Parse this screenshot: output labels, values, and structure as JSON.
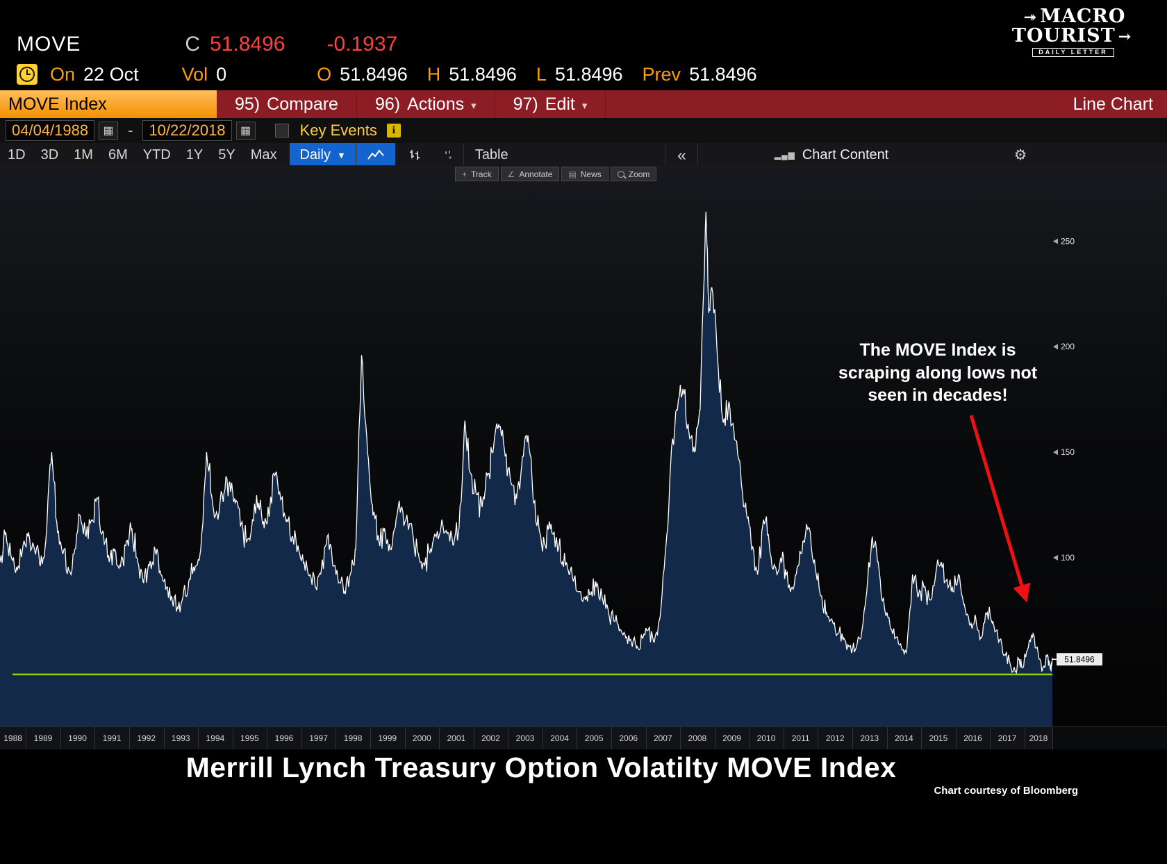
{
  "header": {
    "ticker": "MOVE",
    "close_label": "C",
    "close": "51.8496",
    "change": "-0.1937",
    "on_label": "On",
    "date": "22 Oct",
    "vol_label": "Vol",
    "vol": "0",
    "open_label": "O",
    "open": "51.8496",
    "high_label": "H",
    "high": "51.8496",
    "low_label": "L",
    "low": "51.8496",
    "prev_label": "Prev",
    "prev": "51.8496"
  },
  "logo": {
    "line1": "MACRO",
    "line2": "TOURIST",
    "sub": "DAILY LETTER"
  },
  "menubar": {
    "security": "MOVE Index",
    "items": [
      {
        "num": "95)",
        "label": "Compare"
      },
      {
        "num": "96)",
        "label": "Actions"
      },
      {
        "num": "97)",
        "label": "Edit"
      }
    ],
    "right": "Line Chart"
  },
  "rangebar": {
    "start_date": "04/04/1988",
    "separator": "-",
    "end_date": "10/22/2018",
    "key_events_label": "Key Events"
  },
  "toolbar": {
    "periods": [
      "1D",
      "3D",
      "1M",
      "6M",
      "YTD",
      "1Y",
      "5Y",
      "Max"
    ],
    "frequency": "Daily",
    "table_label": "Table",
    "chart_content_label": "Chart Content"
  },
  "mini_toolbar": {
    "items": [
      "Track",
      "Annotate",
      "News",
      "Zoom"
    ]
  },
  "annotation": {
    "text_lines": [
      "The MOVE Index is",
      "scraping along lows not",
      "seen in decades!"
    ]
  },
  "title": "Merrill Lynch Treasury Option Volatilty MOVE Index",
  "credit": "Chart courtesy of Bloomberg",
  "icons": {
    "caret": "▾",
    "freq_caret": "▼",
    "collapse": "«",
    "gear": "⚙",
    "calendar": "▦",
    "info": "i",
    "chart_bars": "▂▄▆",
    "track": "+",
    "annotate": "∠",
    "news": "▤",
    "logo_arrow": "↠",
    "logo_arrow_head": "→"
  },
  "chart_data": {
    "type": "line",
    "title": "MOVE Index daily, 04/04/1988 - 10/22/2018",
    "xlabel": "",
    "ylabel": "",
    "grid": false,
    "legend_position": "none",
    "xlim": [
      1988.25,
      2018.81
    ],
    "ylim": [
      20,
      286
    ],
    "y_ticks": [
      100,
      150,
      200,
      250
    ],
    "x_tick_years": [
      1988,
      1989,
      1990,
      1991,
      1992,
      1993,
      1994,
      1995,
      1996,
      1997,
      1998,
      1999,
      2000,
      2001,
      2002,
      2003,
      2004,
      2005,
      2006,
      2007,
      2008,
      2009,
      2010,
      2011,
      2012,
      2013,
      2014,
      2015,
      2016,
      2017,
      2018
    ],
    "low_line": 44.7,
    "last_value": 51.8496,
    "last_label": "51.8496",
    "line_color": "#ffffff",
    "fill_color": "#13294a",
    "low_line_color": "#8fd400",
    "arrow_color": "#ee1111",
    "points": [
      [
        1988.25,
        98
      ],
      [
        1988.42,
        112
      ],
      [
        1988.58,
        100
      ],
      [
        1988.75,
        94
      ],
      [
        1988.92,
        106
      ],
      [
        1989.08,
        112
      ],
      [
        1989.25,
        104
      ],
      [
        1989.42,
        96
      ],
      [
        1989.58,
        108
      ],
      [
        1989.75,
        150
      ],
      [
        1989.92,
        112
      ],
      [
        1990.08,
        102
      ],
      [
        1990.25,
        94
      ],
      [
        1990.42,
        104
      ],
      [
        1990.58,
        120
      ],
      [
        1990.75,
        110
      ],
      [
        1990.92,
        118
      ],
      [
        1991.08,
        128
      ],
      [
        1991.25,
        112
      ],
      [
        1991.42,
        98
      ],
      [
        1991.58,
        104
      ],
      [
        1991.75,
        96
      ],
      [
        1991.92,
        108
      ],
      [
        1992.08,
        114
      ],
      [
        1992.25,
        98
      ],
      [
        1992.42,
        88
      ],
      [
        1992.58,
        96
      ],
      [
        1992.75,
        104
      ],
      [
        1992.92,
        92
      ],
      [
        1993.08,
        86
      ],
      [
        1993.25,
        80
      ],
      [
        1993.42,
        76
      ],
      [
        1993.58,
        84
      ],
      [
        1993.75,
        90
      ],
      [
        1993.92,
        96
      ],
      [
        1994.08,
        104
      ],
      [
        1994.25,
        150
      ],
      [
        1994.42,
        126
      ],
      [
        1994.58,
        118
      ],
      [
        1994.75,
        130
      ],
      [
        1994.92,
        136
      ],
      [
        1995.08,
        126
      ],
      [
        1995.25,
        116
      ],
      [
        1995.42,
        108
      ],
      [
        1995.58,
        118
      ],
      [
        1995.75,
        126
      ],
      [
        1995.92,
        114
      ],
      [
        1996.08,
        122
      ],
      [
        1996.25,
        140
      ],
      [
        1996.42,
        128
      ],
      [
        1996.58,
        118
      ],
      [
        1996.75,
        110
      ],
      [
        1996.92,
        104
      ],
      [
        1997.08,
        98
      ],
      [
        1997.25,
        92
      ],
      [
        1997.42,
        86
      ],
      [
        1997.58,
        94
      ],
      [
        1997.75,
        110
      ],
      [
        1997.92,
        96
      ],
      [
        1998.08,
        88
      ],
      [
        1998.25,
        84
      ],
      [
        1998.42,
        92
      ],
      [
        1998.58,
        104
      ],
      [
        1998.75,
        196
      ],
      [
        1998.92,
        150
      ],
      [
        1999.08,
        120
      ],
      [
        1999.25,
        108
      ],
      [
        1999.42,
        114
      ],
      [
        1999.58,
        104
      ],
      [
        1999.75,
        118
      ],
      [
        1999.92,
        124
      ],
      [
        2000.08,
        118
      ],
      [
        2000.25,
        110
      ],
      [
        2000.42,
        100
      ],
      [
        2000.58,
        96
      ],
      [
        2000.75,
        104
      ],
      [
        2000.92,
        110
      ],
      [
        2001.08,
        118
      ],
      [
        2001.25,
        112
      ],
      [
        2001.42,
        106
      ],
      [
        2001.58,
        114
      ],
      [
        2001.75,
        165
      ],
      [
        2001.92,
        140
      ],
      [
        2002.08,
        130
      ],
      [
        2002.25,
        124
      ],
      [
        2002.42,
        140
      ],
      [
        2002.58,
        152
      ],
      [
        2002.75,
        162
      ],
      [
        2002.92,
        148
      ],
      [
        2003.08,
        136
      ],
      [
        2003.25,
        128
      ],
      [
        2003.42,
        148
      ],
      [
        2003.58,
        158
      ],
      [
        2003.75,
        126
      ],
      [
        2003.92,
        112
      ],
      [
        2004.08,
        106
      ],
      [
        2004.25,
        116
      ],
      [
        2004.42,
        108
      ],
      [
        2004.58,
        98
      ],
      [
        2004.75,
        94
      ],
      [
        2004.92,
        90
      ],
      [
        2005.08,
        84
      ],
      [
        2005.25,
        80
      ],
      [
        2005.42,
        84
      ],
      [
        2005.58,
        88
      ],
      [
        2005.75,
        80
      ],
      [
        2005.92,
        74
      ],
      [
        2006.08,
        70
      ],
      [
        2006.25,
        66
      ],
      [
        2006.42,
        62
      ],
      [
        2006.58,
        60
      ],
      [
        2006.75,
        58
      ],
      [
        2006.92,
        62
      ],
      [
        2007.08,
        66
      ],
      [
        2007.25,
        60
      ],
      [
        2007.42,
        72
      ],
      [
        2007.58,
        104
      ],
      [
        2007.75,
        152
      ],
      [
        2007.92,
        170
      ],
      [
        2008.08,
        180
      ],
      [
        2008.25,
        160
      ],
      [
        2008.42,
        150
      ],
      [
        2008.58,
        170
      ],
      [
        2008.75,
        264
      ],
      [
        2008.83,
        216
      ],
      [
        2008.92,
        228
      ],
      [
        2009.08,
        196
      ],
      [
        2009.25,
        164
      ],
      [
        2009.42,
        174
      ],
      [
        2009.58,
        156
      ],
      [
        2009.75,
        142
      ],
      [
        2009.92,
        122
      ],
      [
        2010.08,
        104
      ],
      [
        2010.25,
        92
      ],
      [
        2010.42,
        118
      ],
      [
        2010.58,
        108
      ],
      [
        2010.75,
        96
      ],
      [
        2010.92,
        100
      ],
      [
        2011.08,
        92
      ],
      [
        2011.25,
        86
      ],
      [
        2011.42,
        96
      ],
      [
        2011.58,
        108
      ],
      [
        2011.75,
        114
      ],
      [
        2011.92,
        96
      ],
      [
        2012.08,
        82
      ],
      [
        2012.25,
        74
      ],
      [
        2012.42,
        70
      ],
      [
        2012.58,
        64
      ],
      [
        2012.75,
        62
      ],
      [
        2012.92,
        58
      ],
      [
        2013.08,
        56
      ],
      [
        2013.25,
        62
      ],
      [
        2013.42,
        84
      ],
      [
        2013.58,
        110
      ],
      [
        2013.75,
        98
      ],
      [
        2013.92,
        78
      ],
      [
        2014.08,
        70
      ],
      [
        2014.25,
        62
      ],
      [
        2014.42,
        58
      ],
      [
        2014.58,
        56
      ],
      [
        2014.75,
        92
      ],
      [
        2014.92,
        82
      ],
      [
        2015.08,
        86
      ],
      [
        2015.25,
        80
      ],
      [
        2015.42,
        92
      ],
      [
        2015.58,
        98
      ],
      [
        2015.75,
        90
      ],
      [
        2015.92,
        84
      ],
      [
        2016.08,
        92
      ],
      [
        2016.25,
        78
      ],
      [
        2016.42,
        68
      ],
      [
        2016.58,
        72
      ],
      [
        2016.75,
        62
      ],
      [
        2016.92,
        74
      ],
      [
        2017.08,
        70
      ],
      [
        2017.25,
        60
      ],
      [
        2017.42,
        54
      ],
      [
        2017.58,
        50
      ],
      [
        2017.75,
        46
      ],
      [
        2017.83,
        52
      ],
      [
        2017.92,
        48
      ],
      [
        2018.08,
        56
      ],
      [
        2018.25,
        64
      ],
      [
        2018.42,
        52
      ],
      [
        2018.58,
        48
      ],
      [
        2018.67,
        54
      ],
      [
        2018.75,
        47
      ],
      [
        2018.81,
        51.8496
      ]
    ]
  }
}
